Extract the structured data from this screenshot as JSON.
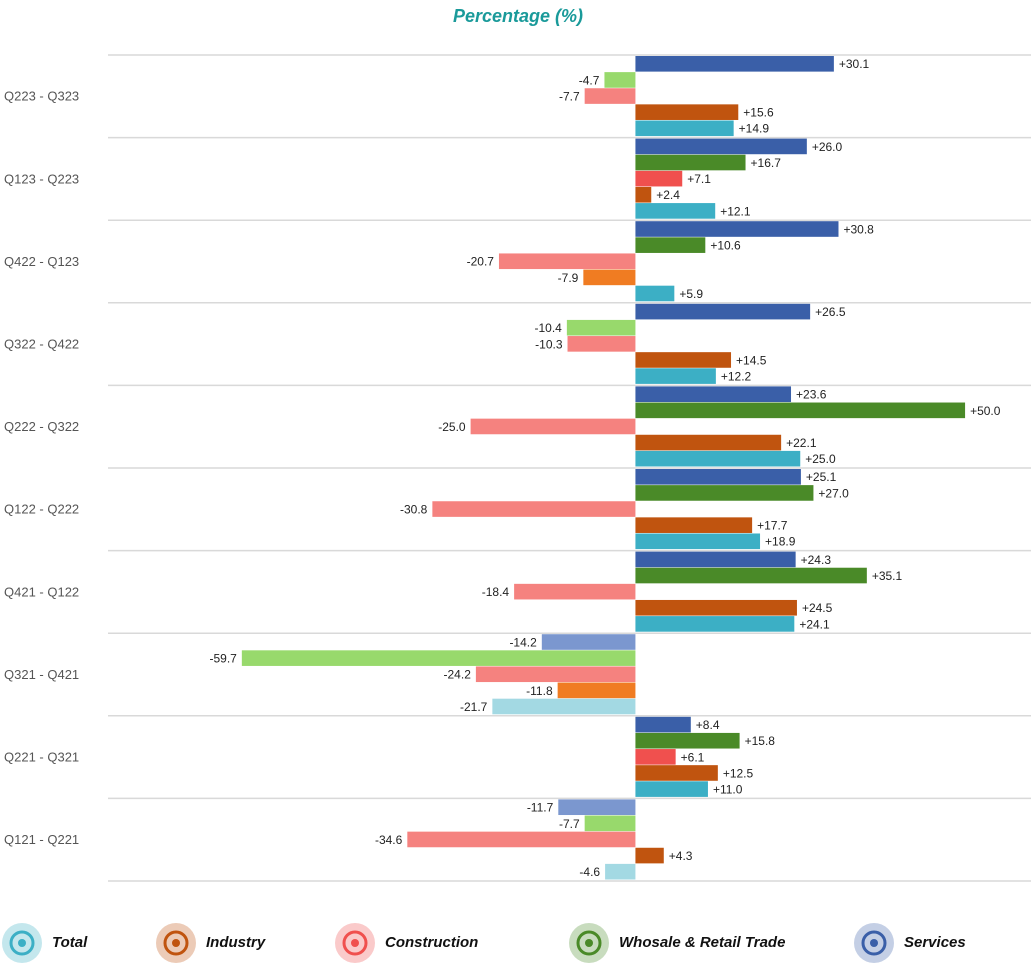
{
  "chart_data": {
    "type": "bar",
    "orientation": "horizontal",
    "title": "Percentage (%)",
    "categories": [
      "Q223 - Q323",
      "Q123 - Q223",
      "Q422 - Q123",
      "Q322 - Q422",
      "Q222 - Q322",
      "Q122 - Q222",
      "Q421 - Q122",
      "Q321 - Q421",
      "Q221 - Q321",
      "Q121 - Q221"
    ],
    "xlim": [
      -80,
      60
    ],
    "legend": "bottom",
    "series": [
      {
        "name": "Total",
        "color": "#3cafc5",
        "negative_color": "#a3d9e3",
        "values": [
          14.9,
          12.1,
          5.9,
          12.2,
          25.0,
          18.9,
          24.1,
          -21.7,
          11.0,
          -4.6
        ],
        "value_labels": [
          "+14.9",
          "+12.1",
          "+5.9",
          "+12.2",
          "+25.0",
          "+18.9",
          "+24.1",
          "-21.7",
          "+11.0",
          "-4.6"
        ]
      },
      {
        "name": "Industry",
        "color": "#c0540f",
        "negative_color": "#f07c22",
        "values": [
          15.6,
          2.4,
          -7.9,
          14.5,
          22.1,
          17.7,
          24.5,
          -11.8,
          12.5,
          4.3
        ],
        "value_labels": [
          "+15.6",
          "+2.4",
          "-7.9",
          "+14.5",
          "+22.1",
          "+17.7",
          "+24.5",
          "-11.8",
          "+12.5",
          "+4.3"
        ]
      },
      {
        "name": "Construction",
        "color": "#f0504e",
        "negative_color": "#f5827f",
        "values": [
          -7.7,
          7.1,
          -20.7,
          -10.3,
          -25.0,
          -30.8,
          -18.4,
          -24.2,
          6.1,
          -34.6
        ],
        "value_labels": [
          "-7.7",
          "+7.1",
          "-20.7",
          "-10.3",
          "-25.0",
          "-30.8",
          "-18.4",
          "-24.2",
          "+6.1",
          "-34.6"
        ]
      },
      {
        "name": "Whosale & Retail Trade",
        "color": "#4a8a28",
        "negative_color": "#98d96c",
        "values": [
          -4.7,
          16.7,
          10.6,
          -10.4,
          50.0,
          27.0,
          35.1,
          -59.7,
          15.8,
          -7.7
        ],
        "value_labels": [
          "-4.7",
          "+16.7",
          "+10.6",
          "-10.4",
          "+50.0",
          "+27.0",
          "+35.1",
          "-59.7",
          "+15.8",
          "-7.7"
        ]
      },
      {
        "name": "Services",
        "color": "#3a5fa8",
        "negative_color": "#7b97cf",
        "values": [
          30.1,
          26.0,
          30.8,
          26.5,
          23.6,
          25.1,
          24.3,
          -14.2,
          8.4,
          -11.7
        ],
        "value_labels": [
          "+30.1",
          "+26.0",
          "+30.8",
          "+26.5",
          "+23.6",
          "+25.1",
          "+24.3",
          "-14.2",
          "+8.4",
          "-11.7"
        ]
      }
    ]
  }
}
